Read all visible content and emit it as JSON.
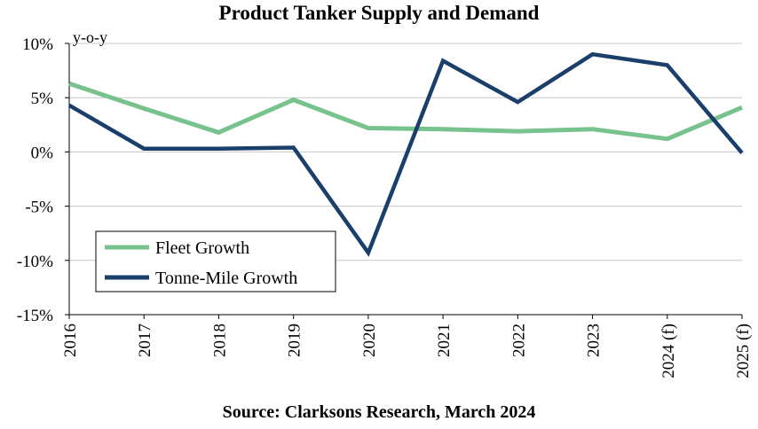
{
  "chart_data": {
    "type": "line",
    "title": "Product Tanker Supply and Demand",
    "ylabel": "y-o-y",
    "xlabel": "",
    "source": "Source: Clarksons Research, March 2024",
    "categories": [
      "2016",
      "2017",
      "2018",
      "2019",
      "2020",
      "2021",
      "2022",
      "2023",
      "2024 (f)",
      "2025 (f)"
    ],
    "ylim": [
      -15,
      10
    ],
    "yticks": [
      10,
      5,
      0,
      -5,
      -10,
      -15
    ],
    "ytick_labels": [
      "10%",
      "5%",
      "0%",
      "-5%",
      "-10%",
      "-15%"
    ],
    "grid": true,
    "legend_position": "lower-left",
    "series": [
      {
        "name": "Fleet Growth",
        "color": "#77c28d",
        "values": [
          6.3,
          4.0,
          1.8,
          4.8,
          2.2,
          2.1,
          1.9,
          2.1,
          1.2,
          4.1
        ]
      },
      {
        "name": "Tonne-Mile Growth",
        "color": "#1b3f6b",
        "values": [
          4.3,
          0.3,
          0.3,
          0.4,
          -9.3,
          8.4,
          4.6,
          9.0,
          8.0,
          -0.1
        ]
      }
    ]
  }
}
